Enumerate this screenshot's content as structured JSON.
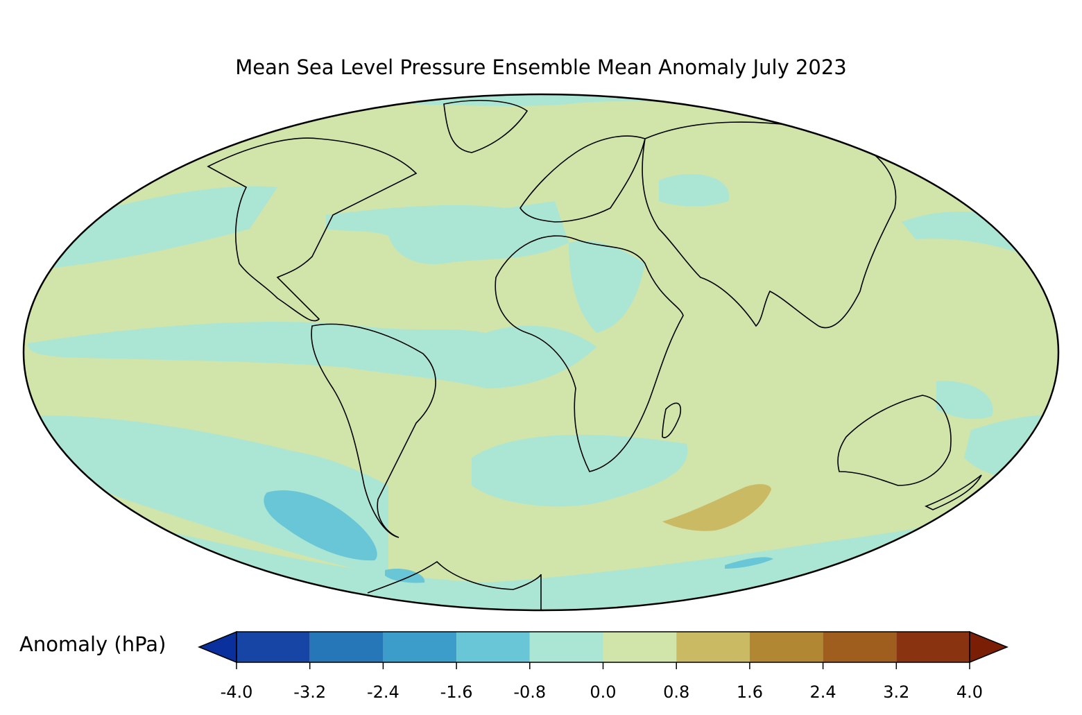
{
  "title": "Mean Sea Level Pressure Ensemble Mean Anomaly July 2023",
  "colorbar": {
    "label": "Anomaly (hPa)",
    "ticks": [
      "-4.0",
      "-3.2",
      "-2.4",
      "-1.6",
      "-0.8",
      "0.0",
      "0.8",
      "1.6",
      "2.4",
      "3.2",
      "4.0"
    ],
    "bins": [
      {
        "from": -4.0,
        "to": -3.2,
        "color": "#1745a6"
      },
      {
        "from": -3.2,
        "to": -2.4,
        "color": "#2677b8"
      },
      {
        "from": -2.4,
        "to": -1.6,
        "color": "#3c9dcb"
      },
      {
        "from": -1.6,
        "to": -0.8,
        "color": "#68c6d6"
      },
      {
        "from": -0.8,
        "to": 0.0,
        "color": "#abe6d5"
      },
      {
        "from": 0.0,
        "to": 0.8,
        "color": "#d1e4a9"
      },
      {
        "from": 0.8,
        "to": 1.6,
        "color": "#cbba64"
      },
      {
        "from": 1.6,
        "to": 2.4,
        "color": "#b28733"
      },
      {
        "from": 2.4,
        "to": 3.2,
        "color": "#9f5d1e"
      },
      {
        "from": 3.2,
        "to": 4.0,
        "color": "#8a3310"
      }
    ],
    "under_color": "#09309c",
    "over_color": "#7a1e05"
  },
  "map": {
    "projection": "Mollweide",
    "background_color": "#d1e4a9",
    "coastline_color": "#000000",
    "border_color": "#888888"
  }
}
